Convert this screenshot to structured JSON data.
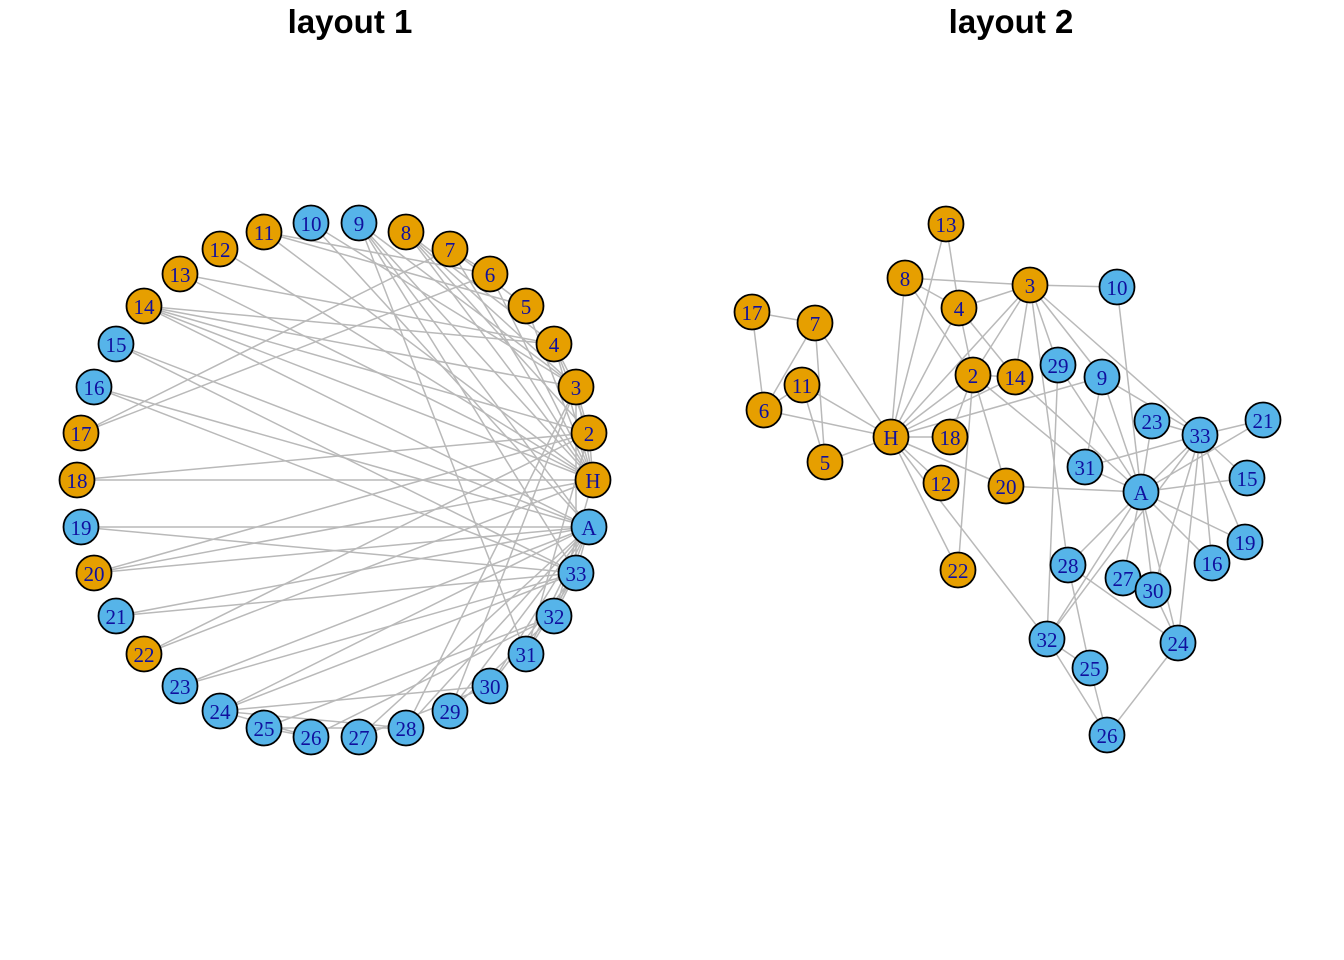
{
  "figure": {
    "background": "#ffffff",
    "panels": [
      {
        "title": "layout 1"
      },
      {
        "title": "layout 2"
      }
    ]
  },
  "chart_data": {
    "type": "network",
    "description": "Zachary karate club graph drawn twice: circular layout (layout 1) and force-directed layout (layout 2); nodes colored by faction",
    "legend": "none",
    "style": {
      "faction_colors": {
        "mr_hi": "#E69F00",
        "john_a": "#56B4E9"
      },
      "node_border_color": "#000000",
      "node_border_width": 1.8,
      "node_radius": 17.5,
      "label_color": "#10109E",
      "edge_color": "#B9B9B9",
      "edge_width": 1.5
    },
    "nodes": [
      {
        "id": "H",
        "label": "H",
        "faction": "mr_hi",
        "l1": [
          593,
          480
        ],
        "l2": [
          891,
          437
        ]
      },
      {
        "id": "2",
        "label": "2",
        "faction": "mr_hi",
        "l1": [
          589,
          433
        ],
        "l2": [
          973,
          375
        ]
      },
      {
        "id": "3",
        "label": "3",
        "faction": "mr_hi",
        "l1": [
          576,
          387
        ],
        "l2": [
          1030,
          285
        ]
      },
      {
        "id": "4",
        "label": "4",
        "faction": "mr_hi",
        "l1": [
          554,
          344
        ],
        "l2": [
          959,
          308
        ]
      },
      {
        "id": "5",
        "label": "5",
        "faction": "mr_hi",
        "l1": [
          526,
          306
        ],
        "l2": [
          825,
          462
        ]
      },
      {
        "id": "6",
        "label": "6",
        "faction": "mr_hi",
        "l1": [
          490,
          274
        ],
        "l2": [
          764,
          410
        ]
      },
      {
        "id": "7",
        "label": "7",
        "faction": "mr_hi",
        "l1": [
          450,
          249
        ],
        "l2": [
          815,
          323
        ]
      },
      {
        "id": "8",
        "label": "8",
        "faction": "mr_hi",
        "l1": [
          406,
          232
        ],
        "l2": [
          905,
          278
        ]
      },
      {
        "id": "9",
        "label": "9",
        "faction": "john_a",
        "l1": [
          359,
          223
        ],
        "l2": [
          1102,
          377
        ]
      },
      {
        "id": "10",
        "label": "10",
        "faction": "john_a",
        "l1": [
          311,
          223
        ],
        "l2": [
          1117,
          287
        ]
      },
      {
        "id": "11",
        "label": "11",
        "faction": "mr_hi",
        "l1": [
          264,
          232
        ],
        "l2": [
          802,
          385
        ]
      },
      {
        "id": "12",
        "label": "12",
        "faction": "mr_hi",
        "l1": [
          220,
          249
        ],
        "l2": [
          941,
          483
        ]
      },
      {
        "id": "13",
        "label": "13",
        "faction": "mr_hi",
        "l1": [
          180,
          274
        ],
        "l2": [
          946,
          224
        ]
      },
      {
        "id": "14",
        "label": "14",
        "faction": "mr_hi",
        "l1": [
          144,
          306
        ],
        "l2": [
          1015,
          377
        ]
      },
      {
        "id": "15",
        "label": "15",
        "faction": "john_a",
        "l1": [
          116,
          344
        ],
        "l2": [
          1247,
          478
        ]
      },
      {
        "id": "16",
        "label": "16",
        "faction": "john_a",
        "l1": [
          94,
          387
        ],
        "l2": [
          1212,
          563
        ]
      },
      {
        "id": "17",
        "label": "17",
        "faction": "mr_hi",
        "l1": [
          81,
          433
        ],
        "l2": [
          752,
          312
        ]
      },
      {
        "id": "18",
        "label": "18",
        "faction": "mr_hi",
        "l1": [
          77,
          480
        ],
        "l2": [
          950,
          437
        ]
      },
      {
        "id": "19",
        "label": "19",
        "faction": "john_a",
        "l1": [
          81,
          527
        ],
        "l2": [
          1245,
          542
        ]
      },
      {
        "id": "20",
        "label": "20",
        "faction": "mr_hi",
        "l1": [
          94,
          573
        ],
        "l2": [
          1006,
          486
        ]
      },
      {
        "id": "21",
        "label": "21",
        "faction": "john_a",
        "l1": [
          116,
          616
        ],
        "l2": [
          1263,
          420
        ]
      },
      {
        "id": "22",
        "label": "22",
        "faction": "mr_hi",
        "l1": [
          144,
          654
        ],
        "l2": [
          958,
          570
        ]
      },
      {
        "id": "23",
        "label": "23",
        "faction": "john_a",
        "l1": [
          180,
          686
        ],
        "l2": [
          1152,
          421
        ]
      },
      {
        "id": "24",
        "label": "24",
        "faction": "john_a",
        "l1": [
          220,
          711
        ],
        "l2": [
          1178,
          643
        ]
      },
      {
        "id": "25",
        "label": "25",
        "faction": "john_a",
        "l1": [
          264,
          728
        ],
        "l2": [
          1090,
          668
        ]
      },
      {
        "id": "26",
        "label": "26",
        "faction": "john_a",
        "l1": [
          311,
          737
        ],
        "l2": [
          1107,
          735
        ]
      },
      {
        "id": "27",
        "label": "27",
        "faction": "john_a",
        "l1": [
          359,
          737
        ],
        "l2": [
          1123,
          578
        ]
      },
      {
        "id": "28",
        "label": "28",
        "faction": "john_a",
        "l1": [
          406,
          728
        ],
        "l2": [
          1068,
          565
        ]
      },
      {
        "id": "29",
        "label": "29",
        "faction": "john_a",
        "l1": [
          450,
          711
        ],
        "l2": [
          1058,
          365
        ]
      },
      {
        "id": "30",
        "label": "30",
        "faction": "john_a",
        "l1": [
          490,
          686
        ],
        "l2": [
          1153,
          590
        ]
      },
      {
        "id": "31",
        "label": "31",
        "faction": "john_a",
        "l1": [
          526,
          654
        ],
        "l2": [
          1085,
          467
        ]
      },
      {
        "id": "32",
        "label": "32",
        "faction": "john_a",
        "l1": [
          554,
          616
        ],
        "l2": [
          1047,
          639
        ]
      },
      {
        "id": "33",
        "label": "33",
        "faction": "john_a",
        "l1": [
          576,
          573
        ],
        "l2": [
          1200,
          435
        ]
      },
      {
        "id": "A",
        "label": "A",
        "faction": "john_a",
        "l1": [
          589,
          527
        ],
        "l2": [
          1141,
          492
        ]
      }
    ],
    "edges": [
      [
        "H",
        "2"
      ],
      [
        "H",
        "3"
      ],
      [
        "H",
        "4"
      ],
      [
        "H",
        "5"
      ],
      [
        "H",
        "6"
      ],
      [
        "H",
        "7"
      ],
      [
        "H",
        "8"
      ],
      [
        "H",
        "9"
      ],
      [
        "H",
        "11"
      ],
      [
        "H",
        "12"
      ],
      [
        "H",
        "13"
      ],
      [
        "H",
        "14"
      ],
      [
        "H",
        "18"
      ],
      [
        "H",
        "20"
      ],
      [
        "H",
        "22"
      ],
      [
        "H",
        "32"
      ],
      [
        "2",
        "3"
      ],
      [
        "2",
        "4"
      ],
      [
        "2",
        "8"
      ],
      [
        "2",
        "14"
      ],
      [
        "2",
        "18"
      ],
      [
        "2",
        "20"
      ],
      [
        "2",
        "22"
      ],
      [
        "2",
        "31"
      ],
      [
        "3",
        "4"
      ],
      [
        "3",
        "8"
      ],
      [
        "3",
        "9"
      ],
      [
        "3",
        "10"
      ],
      [
        "3",
        "14"
      ],
      [
        "3",
        "28"
      ],
      [
        "3",
        "29"
      ],
      [
        "3",
        "33"
      ],
      [
        "4",
        "8"
      ],
      [
        "4",
        "13"
      ],
      [
        "4",
        "14"
      ],
      [
        "5",
        "7"
      ],
      [
        "5",
        "11"
      ],
      [
        "6",
        "7"
      ],
      [
        "6",
        "11"
      ],
      [
        "6",
        "17"
      ],
      [
        "7",
        "17"
      ],
      [
        "9",
        "31"
      ],
      [
        "9",
        "33"
      ],
      [
        "9",
        "A"
      ],
      [
        "10",
        "A"
      ],
      [
        "14",
        "A"
      ],
      [
        "15",
        "33"
      ],
      [
        "15",
        "A"
      ],
      [
        "16",
        "33"
      ],
      [
        "16",
        "A"
      ],
      [
        "19",
        "33"
      ],
      [
        "19",
        "A"
      ],
      [
        "20",
        "A"
      ],
      [
        "21",
        "33"
      ],
      [
        "21",
        "A"
      ],
      [
        "23",
        "33"
      ],
      [
        "23",
        "A"
      ],
      [
        "24",
        "26"
      ],
      [
        "24",
        "28"
      ],
      [
        "24",
        "30"
      ],
      [
        "24",
        "33"
      ],
      [
        "24",
        "A"
      ],
      [
        "25",
        "26"
      ],
      [
        "25",
        "28"
      ],
      [
        "25",
        "32"
      ],
      [
        "26",
        "32"
      ],
      [
        "27",
        "30"
      ],
      [
        "27",
        "A"
      ],
      [
        "28",
        "A"
      ],
      [
        "29",
        "32"
      ],
      [
        "29",
        "A"
      ],
      [
        "30",
        "33"
      ],
      [
        "30",
        "A"
      ],
      [
        "31",
        "33"
      ],
      [
        "31",
        "A"
      ],
      [
        "32",
        "33"
      ],
      [
        "32",
        "A"
      ],
      [
        "33",
        "A"
      ]
    ]
  }
}
